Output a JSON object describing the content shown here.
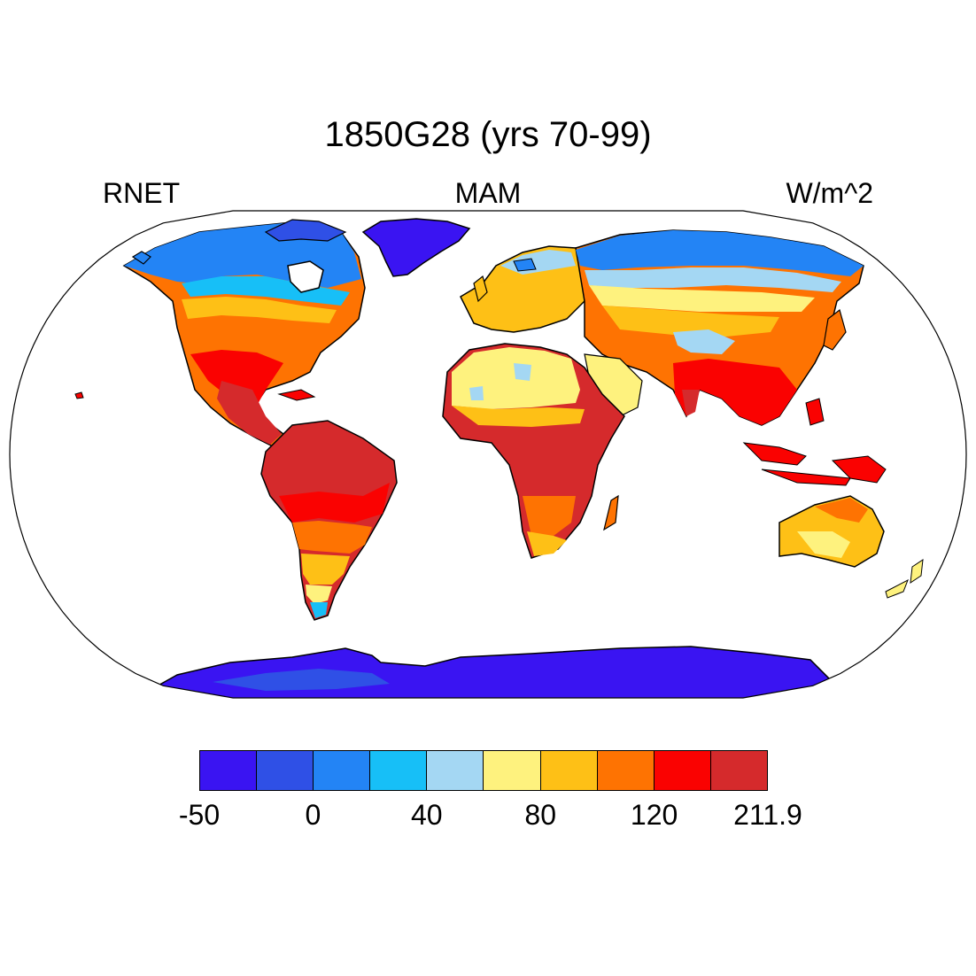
{
  "title": "1850G28 (yrs 70-99)",
  "left_label": "RNET",
  "center_label": "MAM",
  "right_label": "W/m^2",
  "colorbar": {
    "colors": [
      "#3a14f2",
      "#2f50e6",
      "#2384f5",
      "#17bff7",
      "#a4d7f3",
      "#fef27e",
      "#fec016",
      "#fe7302",
      "#fa0201",
      "#d52a2c"
    ],
    "tick_labels": [
      "-50",
      "0",
      "40",
      "80",
      "120",
      "211.9"
    ]
  },
  "map": {
    "projection": "Robinson",
    "ocean_color": "#ffffff",
    "coastline_color": "#000000"
  }
}
